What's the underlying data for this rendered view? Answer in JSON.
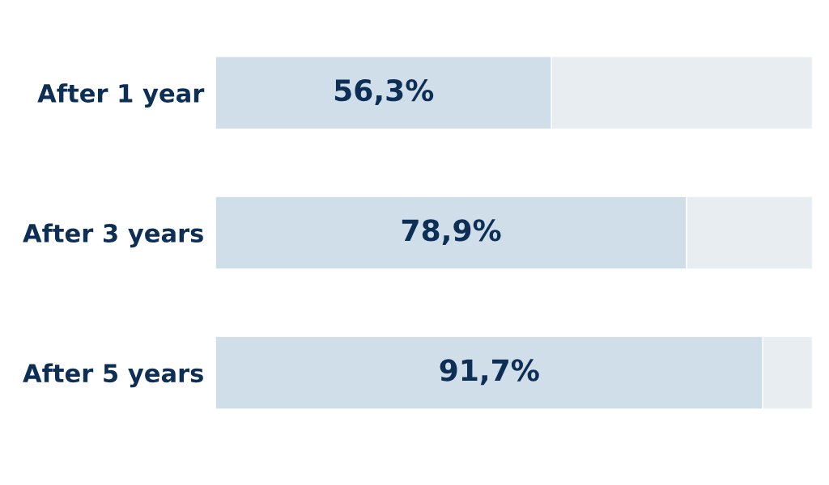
{
  "chart_data": {
    "type": "bar",
    "orientation": "horizontal",
    "stacked": true,
    "categories": [
      "After 1 year",
      "After 3 years",
      "After 5 years"
    ],
    "series": [
      {
        "color": "#d0deea",
        "values": [
          56.3,
          78.9,
          91.7
        ],
        "value_labels": [
          "56,3%",
          "78,9%",
          "91,7%"
        ]
      },
      {
        "color": "#e8edf2",
        "values": [
          43.7,
          21.1,
          8.3
        ]
      }
    ],
    "xlim": [
      0,
      100
    ],
    "tick_labels": "y",
    "grid": false,
    "legend": false
  }
}
